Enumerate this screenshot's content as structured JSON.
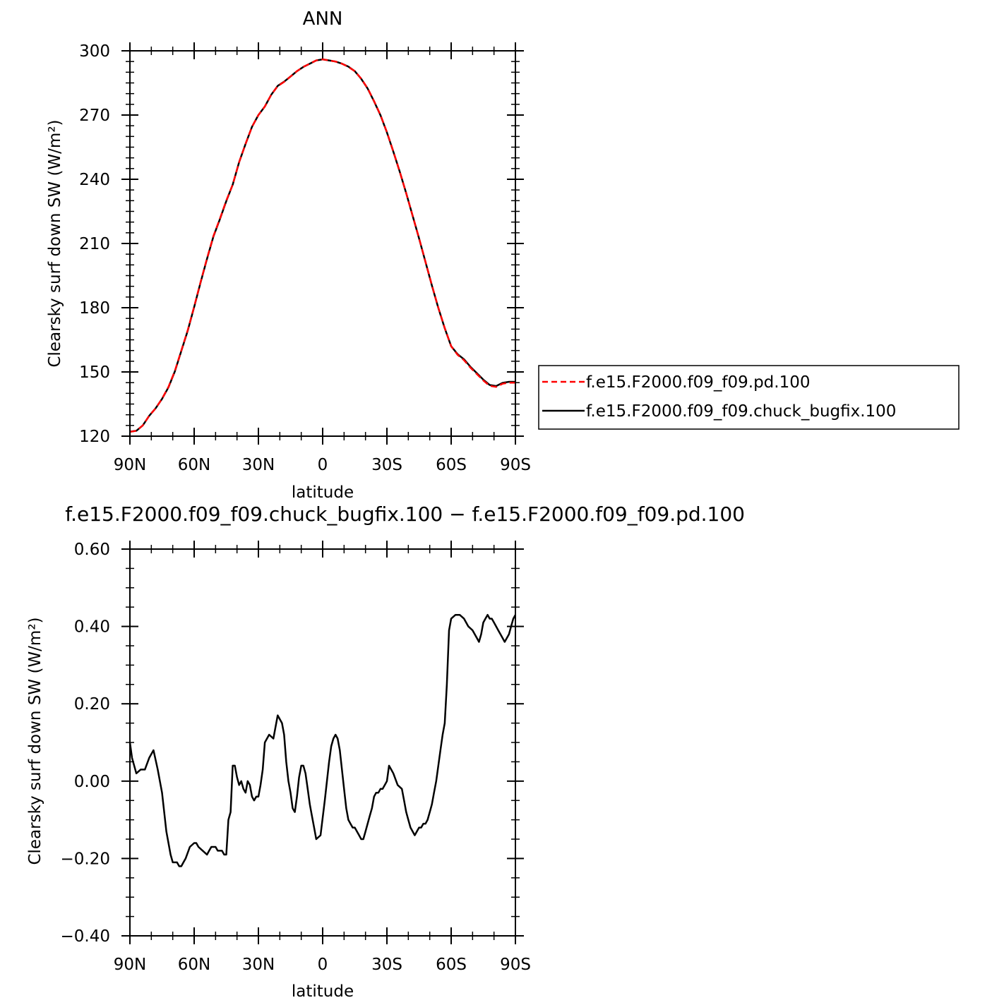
{
  "chart_data": [
    {
      "type": "line",
      "title": "ANN",
      "xlabel": "latitude",
      "ylabel": "Clearsky surf down SW (W/m²)",
      "xlim": [
        -90,
        90
      ],
      "ylim": [
        120,
        300
      ],
      "x_ticks": [
        {
          "value": -90,
          "label": "90N"
        },
        {
          "value": -60,
          "label": "60N"
        },
        {
          "value": -30,
          "label": "30N"
        },
        {
          "value": 0,
          "label": "0"
        },
        {
          "value": 30,
          "label": "30S"
        },
        {
          "value": 60,
          "label": "60S"
        },
        {
          "value": 90,
          "label": "90S"
        }
      ],
      "y_ticks": [
        {
          "value": 120,
          "label": "120"
        },
        {
          "value": 150,
          "label": "150"
        },
        {
          "value": 180,
          "label": "180"
        },
        {
          "value": 210,
          "label": "210"
        },
        {
          "value": 240,
          "label": "240"
        },
        {
          "value": 270,
          "label": "270"
        },
        {
          "value": 300,
          "label": "300"
        }
      ],
      "legend_position": "right",
      "series": [
        {
          "name": "f.e15.F2000.f09_f09.pd.100",
          "color": "#ff0000",
          "dash": "dashed",
          "x": [
            -90,
            -87,
            -84,
            -81,
            -78,
            -75,
            -72,
            -69,
            -66,
            -63,
            -60,
            -57,
            -54,
            -51,
            -48,
            -45,
            -42,
            -39,
            -36,
            -33,
            -30,
            -27,
            -24,
            -21,
            -18,
            -15,
            -12,
            -9,
            -6,
            -3,
            0,
            3,
            6,
            9,
            12,
            15,
            18,
            21,
            24,
            27,
            30,
            33,
            36,
            39,
            42,
            45,
            48,
            51,
            54,
            57,
            60,
            63,
            66,
            69,
            72,
            75,
            78,
            81,
            84,
            87,
            90
          ],
          "y": [
            122,
            122.5,
            125,
            129.5,
            133,
            137.5,
            143,
            150.5,
            160,
            169.5,
            180.5,
            192,
            203,
            213.5,
            221.5,
            230,
            237.5,
            248,
            256.5,
            264.5,
            270,
            274,
            279.5,
            283.5,
            285.5,
            288,
            290.5,
            292.5,
            294,
            295.5,
            296,
            295.5,
            295,
            294,
            292.5,
            290.5,
            287,
            282.5,
            276.5,
            270,
            262,
            253,
            243.5,
            233.5,
            223,
            212.5,
            201.5,
            190.5,
            180,
            170.5,
            162,
            158,
            155.5,
            152,
            149,
            146,
            143.5,
            143,
            144.5,
            145,
            145
          ]
        },
        {
          "name": "f.e15.F2000.f09_f09.chuck_bugfix.100",
          "color": "#000000",
          "dash": "solid",
          "x": [
            -90,
            -87,
            -84,
            -81,
            -78,
            -75,
            -72,
            -69,
            -66,
            -63,
            -60,
            -57,
            -54,
            -51,
            -48,
            -45,
            -42,
            -39,
            -36,
            -33,
            -30,
            -27,
            -24,
            -21,
            -18,
            -15,
            -12,
            -9,
            -6,
            -3,
            0,
            3,
            6,
            9,
            12,
            15,
            18,
            21,
            24,
            27,
            30,
            33,
            36,
            39,
            42,
            45,
            48,
            51,
            54,
            57,
            60,
            63,
            66,
            69,
            72,
            75,
            78,
            81,
            84,
            87,
            90
          ],
          "y": [
            122.1,
            122.5,
            125,
            129.5,
            133,
            137.4,
            142.8,
            150.3,
            159.8,
            169.3,
            180.3,
            191.8,
            202.8,
            213.3,
            221.3,
            229.8,
            237.5,
            248,
            256.5,
            264.5,
            270,
            274,
            279.5,
            283.6,
            285.6,
            288,
            290.5,
            292.5,
            294,
            295.5,
            296,
            295.5,
            295,
            294,
            292.6,
            290.5,
            286.9,
            282.4,
            276.4,
            269.9,
            261.9,
            252.9,
            243.5,
            233.5,
            223,
            212.4,
            201.4,
            190.4,
            179.9,
            170.4,
            162,
            158.3,
            155.9,
            152.4,
            149.4,
            146.4,
            143.9,
            143.4,
            144.9,
            145.4,
            145.4
          ]
        }
      ]
    },
    {
      "type": "line",
      "title": "f.e15.F2000.f09_f09.chuck_bugfix.100 − f.e15.F2000.f09_f09.pd.100",
      "xlabel": "latitude",
      "ylabel": "Clearsky surf down SW (W/m²)",
      "xlim": [
        -90,
        90
      ],
      "ylim": [
        -0.4,
        0.6
      ],
      "x_ticks": [
        {
          "value": -90,
          "label": "90N"
        },
        {
          "value": -60,
          "label": "60N"
        },
        {
          "value": -30,
          "label": "30N"
        },
        {
          "value": 0,
          "label": "0"
        },
        {
          "value": 30,
          "label": "30S"
        },
        {
          "value": 60,
          "label": "60S"
        },
        {
          "value": 90,
          "label": "90S"
        }
      ],
      "y_ticks": [
        {
          "value": -0.4,
          "label": "−0.40"
        },
        {
          "value": -0.2,
          "label": "−0.20"
        },
        {
          "value": 0,
          "label": "0.00"
        },
        {
          "value": 0.2,
          "label": "0.20"
        },
        {
          "value": 0.4,
          "label": "0.40"
        },
        {
          "value": 0.6,
          "label": "0.60"
        }
      ],
      "series": [
        {
          "color": "#000000",
          "dash": "solid",
          "x": [
            -90,
            -89,
            -87,
            -85,
            -83,
            -81,
            -79,
            -77,
            -75,
            -73,
            -71,
            -70,
            -69,
            -68,
            -67,
            -66,
            -65,
            -64,
            -62,
            -60,
            -59,
            -58,
            -56,
            -54,
            -53,
            -52,
            -51,
            -50,
            -49,
            -48,
            -47,
            -46,
            -45,
            -44,
            -43,
            -42,
            -41,
            -40,
            -39,
            -38,
            -37,
            -36,
            -35,
            -34,
            -33,
            -32,
            -31,
            -30,
            -29,
            -28,
            -27,
            -25,
            -23,
            -21,
            -19,
            -18,
            -17,
            -16,
            -15,
            -14,
            -13,
            -12,
            -11,
            -10,
            -9,
            -8,
            -7,
            -6,
            -5,
            -4,
            -3,
            -1,
            1,
            3,
            4,
            5,
            6,
            7,
            8,
            9,
            10,
            11,
            12,
            13,
            14,
            15,
            16,
            17,
            18,
            19,
            20,
            21,
            22,
            23,
            24,
            25,
            26,
            27,
            28,
            29,
            30,
            31,
            32,
            33,
            35,
            37,
            38,
            39,
            40,
            41,
            42,
            43,
            44,
            45,
            46,
            47,
            48,
            49,
            50,
            51,
            52,
            53,
            54,
            55,
            56,
            57,
            58,
            59,
            60,
            62,
            64,
            66,
            68,
            70,
            72,
            73,
            74,
            75,
            76,
            77,
            78,
            79,
            80,
            81,
            82,
            83,
            84,
            85,
            86,
            87,
            88,
            89,
            90
          ],
          "y": [
            0.1,
            0.06,
            0.02,
            0.03,
            0.03,
            0.06,
            0.08,
            0.03,
            -0.03,
            -0.13,
            -0.19,
            -0.21,
            -0.21,
            -0.21,
            -0.22,
            -0.22,
            -0.21,
            -0.2,
            -0.17,
            -0.16,
            -0.16,
            -0.17,
            -0.18,
            -0.19,
            -0.18,
            -0.17,
            -0.17,
            -0.17,
            -0.18,
            -0.18,
            -0.18,
            -0.19,
            -0.19,
            -0.1,
            -0.08,
            0.04,
            0.04,
            0.01,
            -0.01,
            0.0,
            -0.02,
            -0.03,
            0.0,
            -0.01,
            -0.04,
            -0.05,
            -0.04,
            -0.04,
            -0.01,
            0.03,
            0.1,
            0.12,
            0.11,
            0.17,
            0.15,
            0.12,
            0.05,
            0.0,
            -0.03,
            -0.07,
            -0.08,
            -0.04,
            0.01,
            0.04,
            0.04,
            0.02,
            -0.02,
            -0.06,
            -0.09,
            -0.12,
            -0.15,
            -0.14,
            -0.05,
            0.05,
            0.09,
            0.11,
            0.12,
            0.11,
            0.08,
            0.03,
            -0.02,
            -0.07,
            -0.1,
            -0.11,
            -0.12,
            -0.12,
            -0.13,
            -0.14,
            -0.15,
            -0.15,
            -0.13,
            -0.11,
            -0.09,
            -0.07,
            -0.04,
            -0.03,
            -0.03,
            -0.02,
            -0.02,
            -0.01,
            0.0,
            0.04,
            0.03,
            0.02,
            -0.01,
            -0.02,
            -0.05,
            -0.08,
            -0.1,
            -0.12,
            -0.13,
            -0.14,
            -0.13,
            -0.12,
            -0.12,
            -0.11,
            -0.11,
            -0.1,
            -0.08,
            -0.06,
            -0.03,
            0.0,
            0.04,
            0.08,
            0.12,
            0.15,
            0.25,
            0.39,
            0.42,
            0.43,
            0.43,
            0.42,
            0.4,
            0.39,
            0.37,
            0.36,
            0.38,
            0.41,
            0.42,
            0.43,
            0.42,
            0.42,
            0.41,
            0.4,
            0.39,
            0.38,
            0.37,
            0.36,
            0.37,
            0.38,
            0.4,
            0.42,
            0.43
          ]
        }
      ]
    }
  ]
}
